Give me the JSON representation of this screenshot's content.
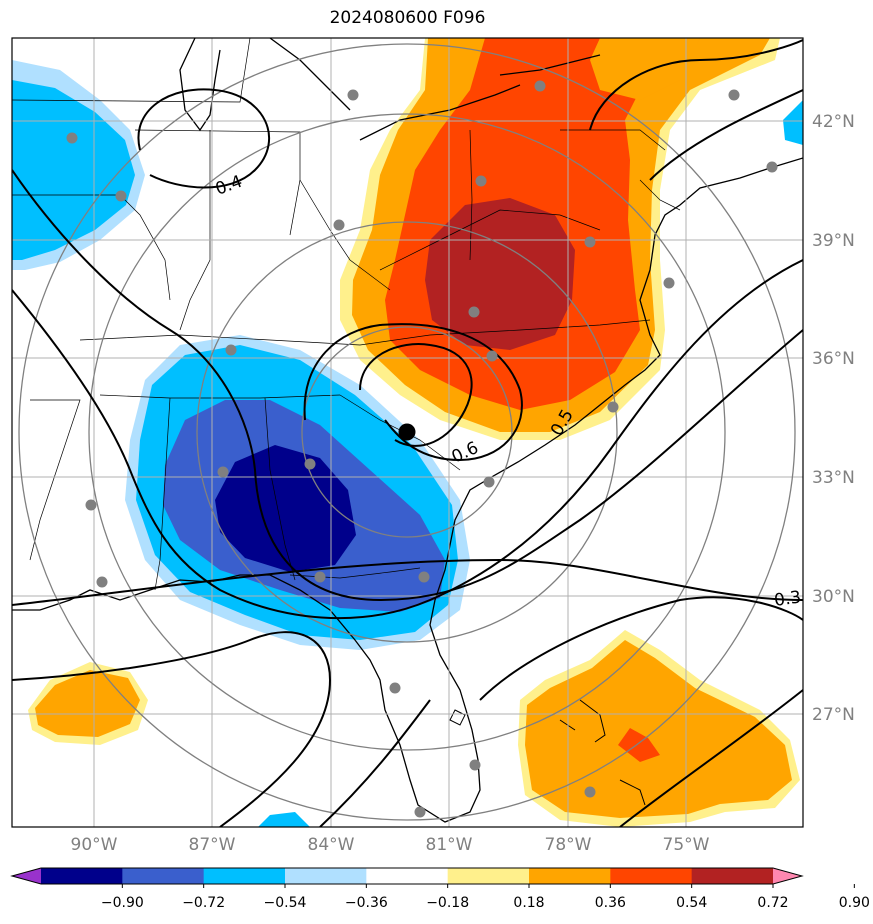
{
  "title": "2024080600 F096",
  "map": {
    "lat_labels": [
      "42°N",
      "39°N",
      "36°N",
      "33°N",
      "30°N",
      "27°N"
    ],
    "lon_labels": [
      "90°W",
      "87°W",
      "84°W",
      "81°W",
      "78°W",
      "75°W"
    ],
    "contour_labels": [
      "0.4",
      "0.5",
      "0.6",
      "0.3"
    ],
    "center_marker": "black-dot",
    "station_marker_color": "#808080"
  },
  "colorbar": {
    "ticks": [
      "−0.90",
      "−0.72",
      "−0.54",
      "−0.36",
      "−0.18",
      "0.18",
      "0.36",
      "0.54",
      "0.72",
      "0.90"
    ],
    "colors": [
      "#9932cc",
      "#00008b",
      "#3a5fcd",
      "#00bfff",
      "#b0e0ff",
      "#ffffff",
      "#fff08c",
      "#ffa500",
      "#ff4500",
      "#b22222",
      "#ff88b0"
    ]
  }
}
